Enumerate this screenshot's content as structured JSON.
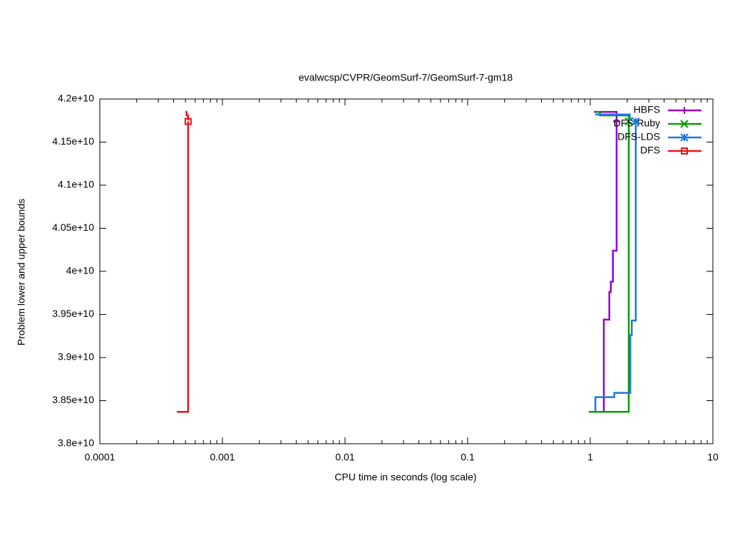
{
  "chart_data": {
    "type": "line",
    "title": "evalwcsp/CVPR/GeomSurf-7/GeomSurf-7-gm18",
    "x_label": "CPU time in seconds (log scale)",
    "y_label": "Problem lower and upper bounds",
    "xscale": "log",
    "xlim": [
      0.0001,
      10
    ],
    "xticks": [
      0.0001,
      0.001,
      0.01,
      0.1,
      1,
      10
    ],
    "ylim": [
      38000000000,
      42000000000
    ],
    "yticks": [
      {
        "value": 38000000000,
        "label": "3.8e+10"
      },
      {
        "value": 38500000000,
        "label": "3.85e+10"
      },
      {
        "value": 39000000000,
        "label": "3.9e+10"
      },
      {
        "value": 39500000000,
        "label": "3.95e+10"
      },
      {
        "value": 40000000000,
        "label": "4e+10"
      },
      {
        "value": 40500000000,
        "label": "4.05e+10"
      },
      {
        "value": 41000000000,
        "label": "4.1e+10"
      },
      {
        "value": 41500000000,
        "label": "4.15e+10"
      },
      {
        "value": 42000000000,
        "label": "4.2e+10"
      }
    ],
    "legend": "upper right",
    "series": [
      {
        "name": "HBFS",
        "color": "#9400d3",
        "marker": "plus",
        "x": [
          1.07,
          1.64,
          1.64,
          null,
          0.973,
          1.29,
          1.29,
          1.43,
          1.43,
          1.47,
          1.47,
          1.53,
          1.53,
          1.64,
          1.64
        ],
        "values": [
          41850000000,
          41850000000,
          41750000000,
          null,
          38370000000,
          38370000000,
          39440000000,
          39440000000,
          39760000000,
          39760000000,
          39880000000,
          39880000000,
          40240000000,
          40240000000,
          41740000000
        ]
      },
      {
        "name": "DFS-Ruby",
        "color": "#00a000",
        "marker": "cross",
        "x": [
          1.1,
          1.2,
          1.2,
          2.06,
          2.06,
          null,
          0.97,
          2.06,
          2.06
        ],
        "values": [
          41850000000,
          41850000000,
          41810000000,
          41810000000,
          41750000000,
          null,
          38370000000,
          38370000000,
          41740000000
        ]
      },
      {
        "name": "DFS-LDS",
        "color": "#1e78e0",
        "marker": "star",
        "x": [
          1.1,
          2.1,
          2.1,
          null,
          1.1,
          1.1,
          1.57,
          1.57,
          2.12,
          2.12,
          2.18,
          2.18,
          2.35,
          2.35
        ],
        "values": [
          41820000000,
          41820000000,
          41750000000,
          null,
          38370000000,
          38540000000,
          38540000000,
          38590000000,
          38590000000,
          39260000000,
          39260000000,
          39430000000,
          39430000000,
          41740000000
        ]
      },
      {
        "name": "DFS",
        "color": "#e8141e",
        "marker": "square",
        "x": [
          0.0005,
          0.00051,
          0.00051,
          0.000525,
          0.000525,
          null,
          0.000425,
          0.000525,
          0.000525
        ],
        "values": [
          41850000000,
          41850000000,
          41810000000,
          41810000000,
          41750000000,
          null,
          38370000000,
          38370000000,
          41740000000
        ]
      }
    ]
  }
}
